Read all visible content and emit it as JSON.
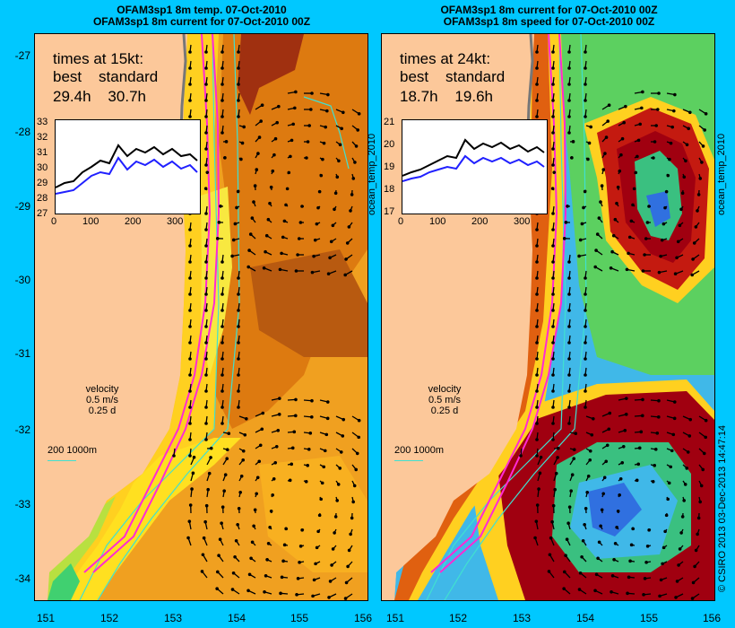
{
  "left": {
    "title1": "OFAM3sp1 8m temp. 07-Oct-2010",
    "title2": "OFAM3sp1 8m current for 07-Oct-2010 00Z",
    "times_heading": "times at 15kt:",
    "times_row1": "best    standard",
    "times_row2": "29.4h    30.7h",
    "inset_y": [
      "33",
      "32",
      "31",
      "30",
      "29",
      "28",
      "27"
    ],
    "inset_x": [
      "0",
      "100",
      "200",
      "300"
    ],
    "side_label": "ocean_temp_2010"
  },
  "right": {
    "title1": "OFAM3sp1 8m current for 07-Oct-2010 00Z",
    "title2": "OFAM3sp1 8m speed for 07-Oct-2010 00Z",
    "times_heading": "times at 24kt:",
    "times_row1": "best    standard",
    "times_row2": "18.7h    19.6h",
    "inset_y": [
      "21",
      "20",
      "19",
      "18",
      "17"
    ],
    "inset_x": [
      "0",
      "100",
      "200",
      "300"
    ],
    "side_label": "ocean_temp_2010"
  },
  "velocity": {
    "label": "velocity",
    "speed": "0.5 m/s",
    "time": "0.25 d"
  },
  "depth_scale": "200  1000m",
  "lat_ticks": [
    "-27",
    "-28",
    "-29",
    "-30",
    "-31",
    "-32",
    "-33",
    "-34"
  ],
  "lon_ticks": [
    "151",
    "152",
    "153",
    "154",
    "155",
    "156"
  ],
  "credit": "© CSIRO 2013   03-Dec-2013 14:47:14",
  "colors": {
    "background": "#00c8ff",
    "land": "#fcc89a",
    "route": "#ff2ad4",
    "depth": "#40e0d0"
  }
}
